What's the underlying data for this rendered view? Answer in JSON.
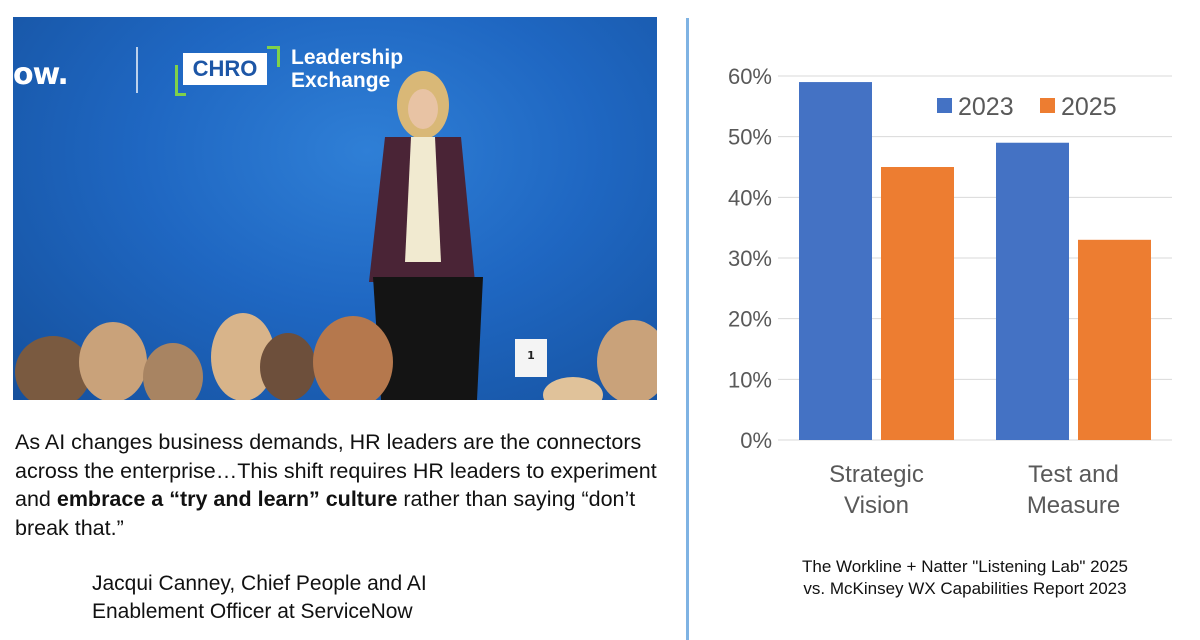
{
  "photo": {
    "logo_now": "ow.",
    "logo_chro": "CHRO",
    "logo_lead_line1": "Leadership",
    "logo_lead_line2": "Exchange",
    "podium_number": "1"
  },
  "quote": {
    "part1": "As AI changes business demands, HR leaders are the connectors across the enterprise…This shift requires HR leaders to experiment and ",
    "bold": "embrace a “try and learn” culture",
    "part2": " rather than saying “don’t break that.”"
  },
  "attribution": {
    "line1": "Jacqui Canney, Chief People and AI",
    "line2": "Enablement Officer at ServiceNow"
  },
  "caption": {
    "line1": "The Workline + Natter \"Listening Lab\" 2025",
    "line2": "vs. McKinsey WX Capabilities Report 2023"
  },
  "chart_data": {
    "type": "bar",
    "categories": [
      [
        "Strategic",
        "Vision"
      ],
      [
        "Test and",
        "Measure"
      ]
    ],
    "series": [
      {
        "name": "2023",
        "color": "#4472c4",
        "values": [
          59,
          49
        ]
      },
      {
        "name": "2025",
        "color": "#ed7d31",
        "values": [
          45,
          33
        ]
      }
    ],
    "yticks": [
      "0%",
      "10%",
      "20%",
      "30%",
      "40%",
      "50%",
      "60%"
    ],
    "ylim": [
      0,
      60
    ],
    "grid": true,
    "legend": "top-right"
  }
}
